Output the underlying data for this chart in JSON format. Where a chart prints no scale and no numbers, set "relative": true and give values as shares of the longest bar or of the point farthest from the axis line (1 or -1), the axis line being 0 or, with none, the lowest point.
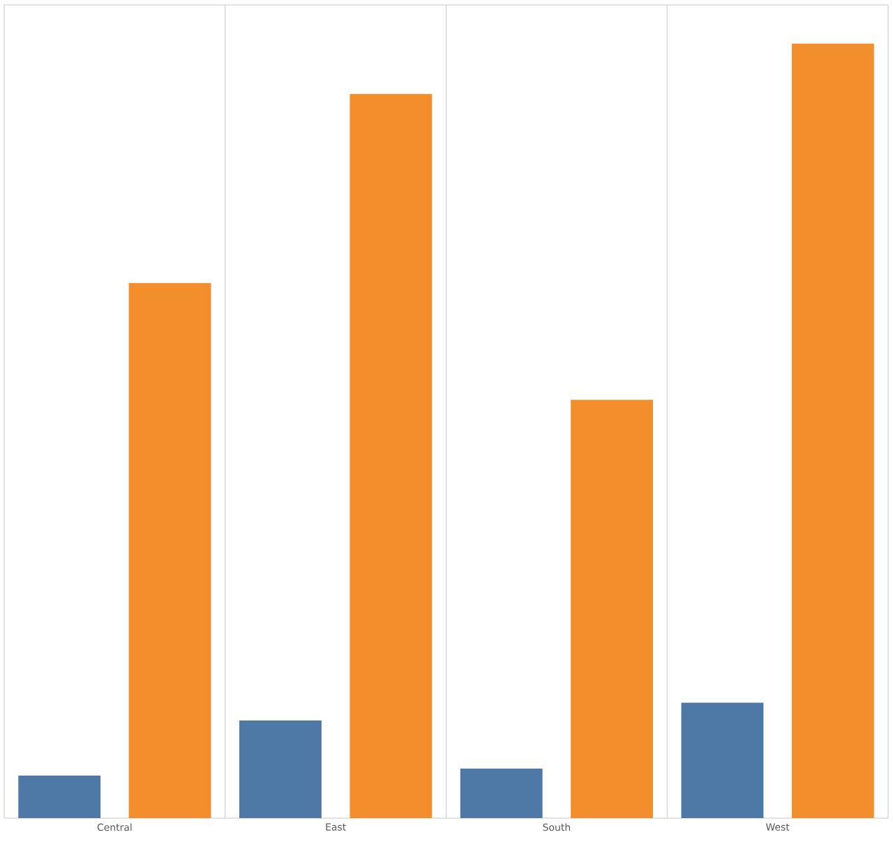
{
  "chart_data": {
    "type": "bar",
    "relative": true,
    "categories": [
      "Central",
      "East",
      "South",
      "West"
    ],
    "series": [
      {
        "color": "#4e79a7",
        "values": [
          0.055,
          0.126,
          0.064,
          0.149
        ]
      },
      {
        "color": "#f28e2b",
        "values": [
          0.691,
          0.935,
          0.54,
          1.0
        ]
      }
    ]
  }
}
